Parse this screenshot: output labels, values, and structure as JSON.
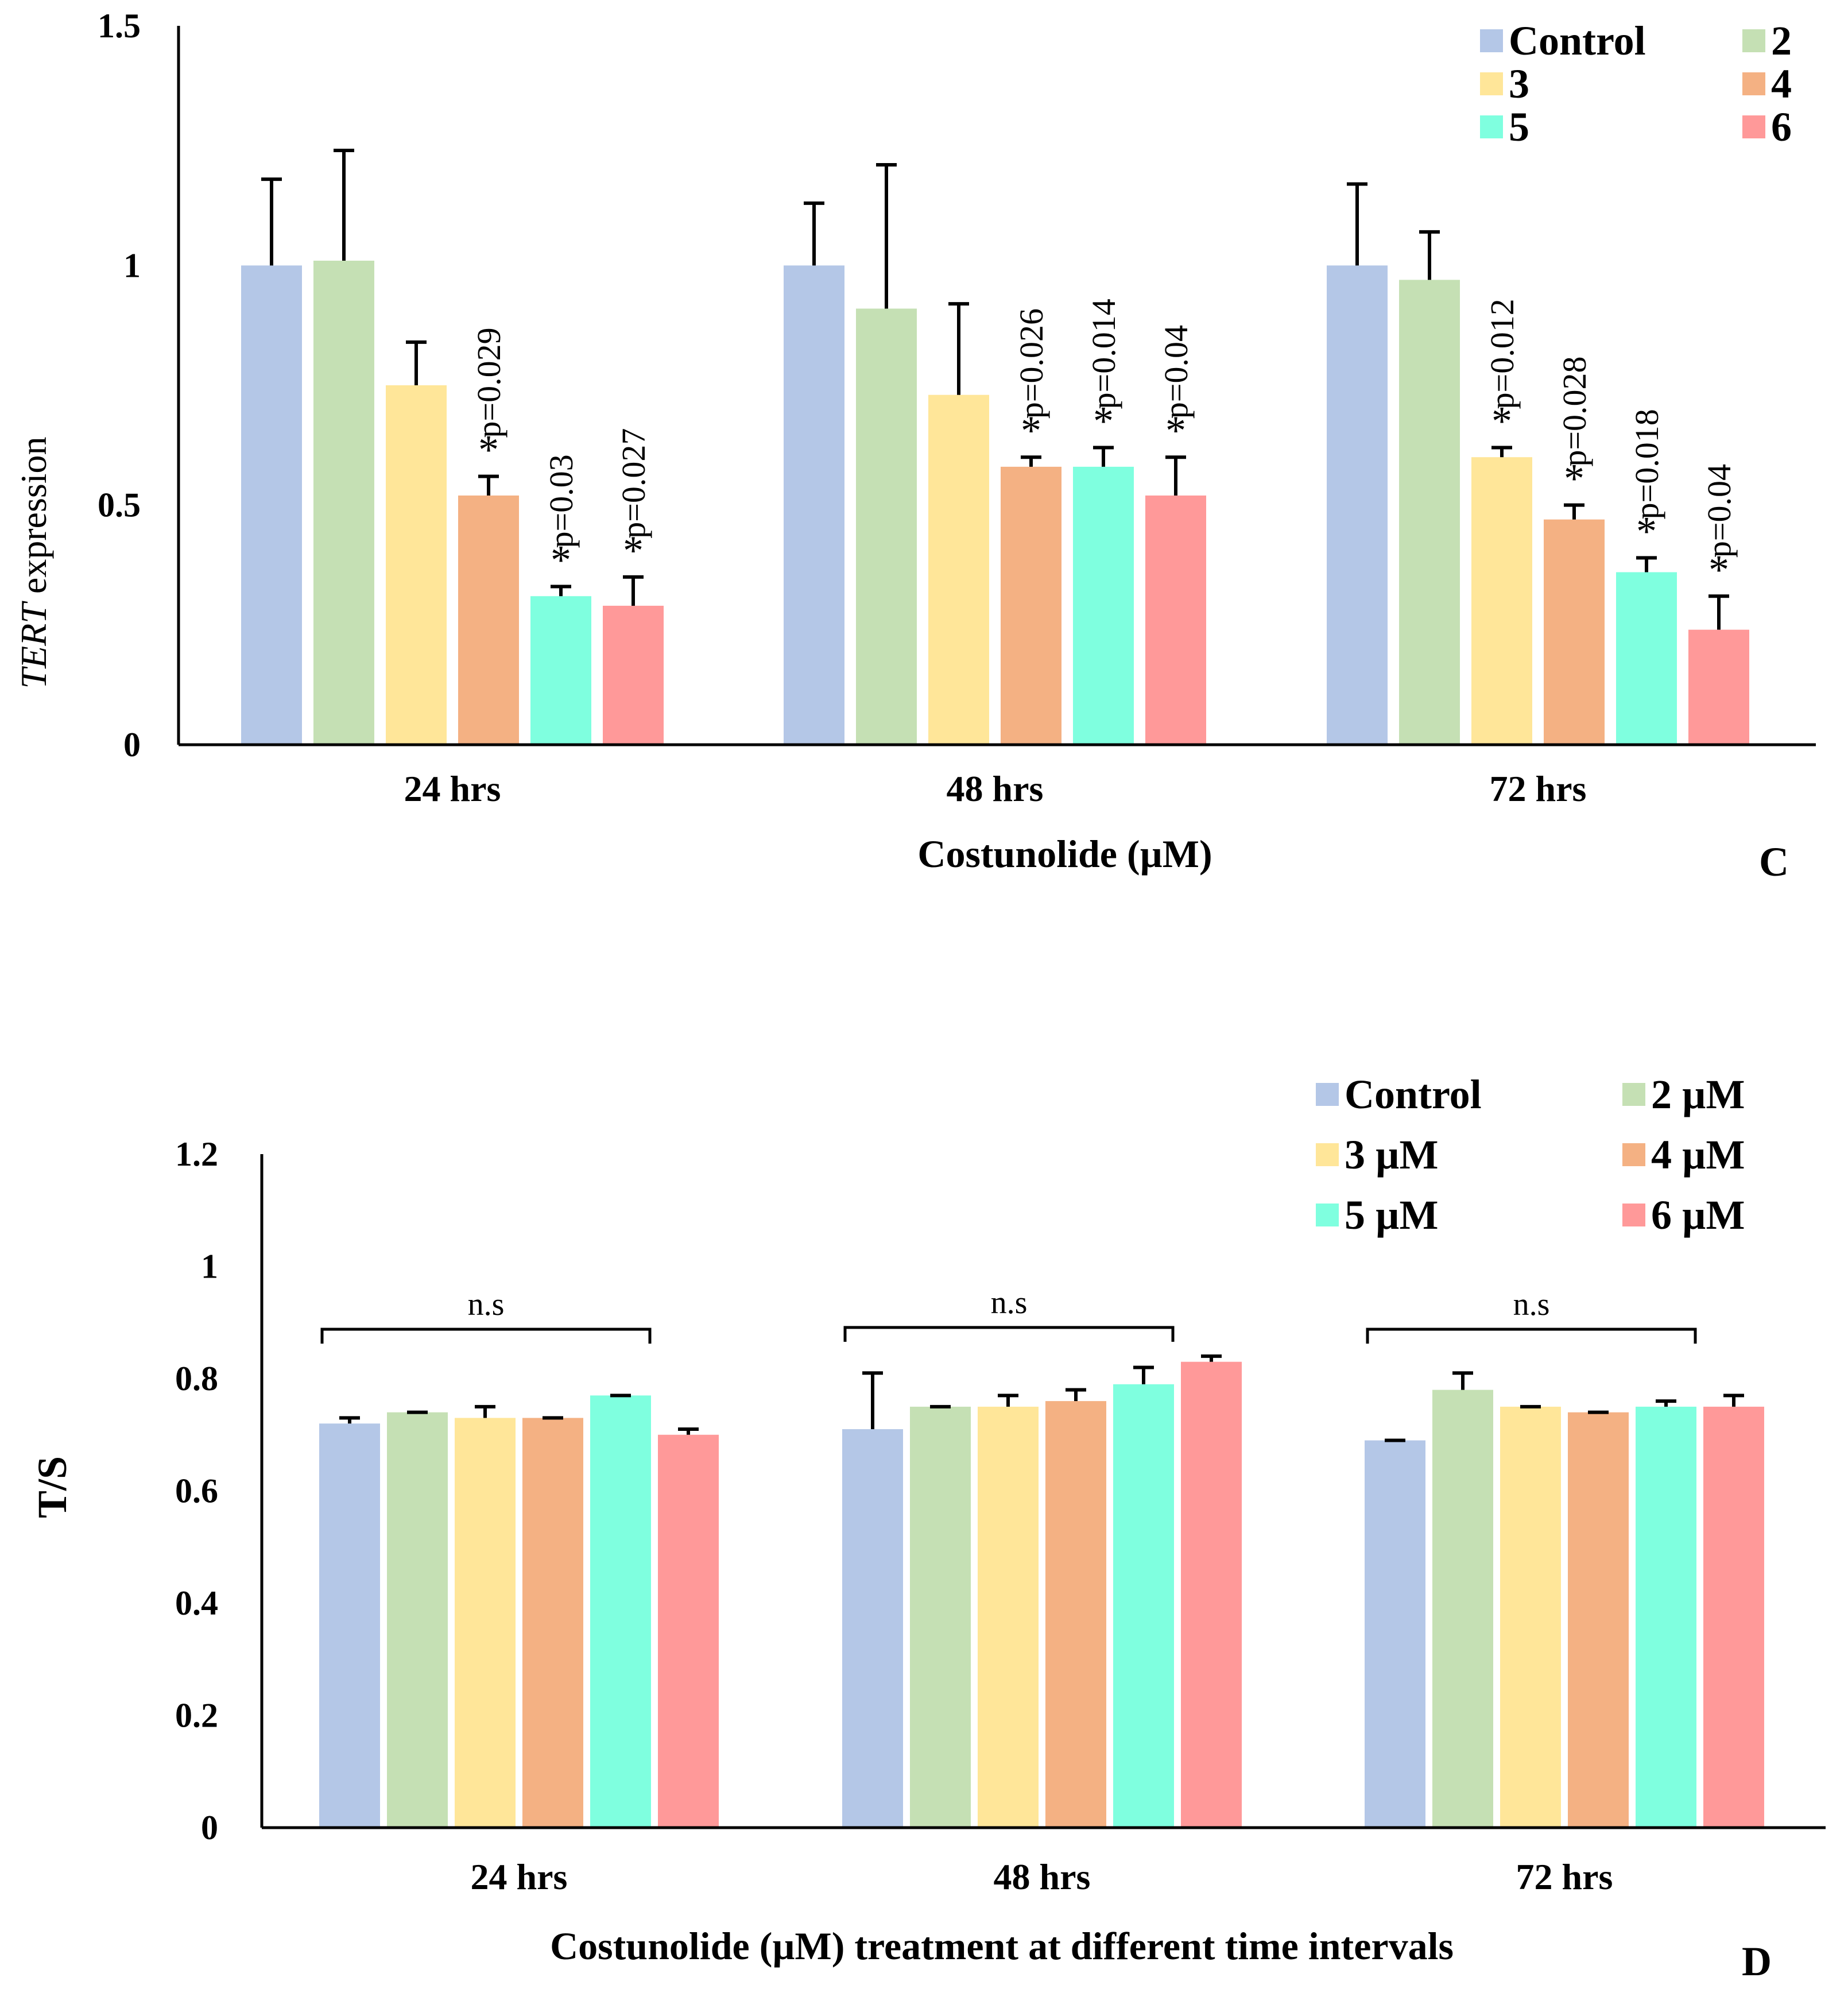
{
  "chart_data": [
    {
      "type": "bar",
      "panel_label": "C",
      "ylabel_italic": "TERT",
      "ylabel_rest": " expression",
      "xlabel": "Costunolide (µM)",
      "categories": [
        "24 hrs",
        "48 hrs",
        "72 hrs"
      ],
      "ylim": [
        0,
        1.5
      ],
      "yticks": [
        0,
        0.5,
        1,
        1.5
      ],
      "ytick_labels": [
        "0",
        "0.5",
        "1",
        "1.5"
      ],
      "series": [
        {
          "name": "Control",
          "color": "#b4c7e7",
          "values": [
            1.0,
            1.0,
            1.0
          ],
          "errors": [
            0.18,
            0.13,
            0.17
          ]
        },
        {
          "name": "2",
          "color": "#c5e0b4",
          "values": [
            1.01,
            0.91,
            0.97
          ],
          "errors": [
            0.23,
            0.3,
            0.1
          ]
        },
        {
          "name": "3",
          "color": "#ffe699",
          "values": [
            0.75,
            0.73,
            0.6
          ],
          "errors": [
            0.09,
            0.19,
            0.02
          ]
        },
        {
          "name": "4",
          "color": "#f4b183",
          "values": [
            0.52,
            0.58,
            0.47
          ],
          "errors": [
            0.04,
            0.02,
            0.03
          ]
        },
        {
          "name": "5",
          "color": "#7fffdf",
          "values": [
            0.31,
            0.58,
            0.36
          ],
          "errors": [
            0.02,
            0.04,
            0.03
          ]
        },
        {
          "name": "6",
          "color": "#ff9999",
          "values": [
            0.29,
            0.52,
            0.24
          ],
          "errors": [
            0.06,
            0.08,
            0.07
          ]
        }
      ],
      "annotations": [
        {
          "group": 0,
          "series": 3,
          "star": "*",
          "pvalue": "p=0.029"
        },
        {
          "group": 0,
          "series": 4,
          "star": "*",
          "pvalue": "p=0.03"
        },
        {
          "group": 0,
          "series": 5,
          "star": "*",
          "pvalue": "p=0.027"
        },
        {
          "group": 1,
          "series": 3,
          "star": "*",
          "pvalue": "p=0.026"
        },
        {
          "group": 1,
          "series": 4,
          "star": "*",
          "pvalue": "p=0.014"
        },
        {
          "group": 1,
          "series": 5,
          "star": "*",
          "pvalue": "p=0.04"
        },
        {
          "group": 2,
          "series": 2,
          "star": "*",
          "pvalue": "p=0.012"
        },
        {
          "group": 2,
          "series": 3,
          "star": "*",
          "pvalue": "p=0.028"
        },
        {
          "group": 2,
          "series": 4,
          "star": "*",
          "pvalue": "p=0.018"
        },
        {
          "group": 2,
          "series": 5,
          "star": "*",
          "pvalue": "p=0.04"
        }
      ]
    },
    {
      "type": "bar",
      "panel_label": "D",
      "ylabel": "T/S",
      "xlabel": "Costunolide (µM) treatment at different time intervals",
      "categories": [
        "24 hrs",
        "48 hrs",
        "72 hrs"
      ],
      "ylim": [
        0,
        1.2
      ],
      "yticks": [
        0,
        0.2,
        0.4,
        0.6,
        0.8,
        1,
        1.2
      ],
      "ytick_labels": [
        "0",
        "0.2",
        "0.4",
        "0.6",
        "0.8",
        "1",
        "1.2"
      ],
      "series": [
        {
          "name": "Control",
          "color": "#b4c7e7",
          "values": [
            0.72,
            0.71,
            0.69
          ],
          "errors": [
            0.01,
            0.1,
            0.0
          ]
        },
        {
          "name": "2 µM",
          "color": "#c5e0b4",
          "values": [
            0.74,
            0.75,
            0.78
          ],
          "errors": [
            0.0,
            0.0,
            0.03
          ]
        },
        {
          "name": "3 µM",
          "color": "#ffe699",
          "values": [
            0.73,
            0.75,
            0.75
          ],
          "errors": [
            0.02,
            0.02,
            0.0
          ]
        },
        {
          "name": "4 µM",
          "color": "#f4b183",
          "values": [
            0.73,
            0.76,
            0.74
          ],
          "errors": [
            0.0,
            0.02,
            0.0
          ]
        },
        {
          "name": "5 µM",
          "color": "#7fffdf",
          "values": [
            0.77,
            0.79,
            0.75
          ],
          "errors": [
            0.0,
            0.03,
            0.01
          ]
        },
        {
          "name": "6 µM",
          "color": "#ff9999",
          "values": [
            0.7,
            0.83,
            0.75
          ],
          "errors": [
            0.01,
            0.01,
            0.02
          ]
        }
      ],
      "group_annotations": [
        {
          "group": 0,
          "text": "n.s"
        },
        {
          "group": 1,
          "text": "n.s"
        },
        {
          "group": 2,
          "text": "n.s"
        }
      ]
    }
  ]
}
